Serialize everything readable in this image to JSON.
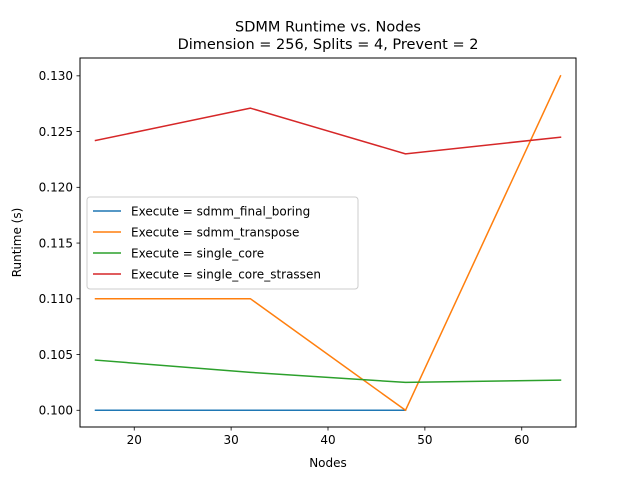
{
  "chart_data": {
    "type": "line",
    "title": "SDMM Runtime vs. Nodes",
    "subtitle": "Dimension = 256, Splits = 4, Prevent = 2",
    "xlabel": "Nodes",
    "ylabel": "Runtime (s)",
    "xlim": [
      14.4,
      65.6
    ],
    "ylim": [
      0.0985,
      0.1316
    ],
    "xticks": [
      20,
      30,
      40,
      50,
      60
    ],
    "yticks": [
      0.1,
      0.105,
      0.11,
      0.115,
      0.12,
      0.125,
      0.13
    ],
    "ytick_labels": [
      "0.100",
      "0.105",
      "0.110",
      "0.115",
      "0.120",
      "0.125",
      "0.130"
    ],
    "grid": false,
    "legend_position": "center-left",
    "series": [
      {
        "name": "Execute = sdmm_final_boring",
        "color": "#1f77b4",
        "x": [
          16,
          32,
          48
        ],
        "values": [
          0.1,
          0.1,
          0.1
        ]
      },
      {
        "name": "Execute = sdmm_transpose",
        "color": "#ff7f0e",
        "x": [
          16,
          32,
          48,
          64
        ],
        "values": [
          0.11,
          0.11,
          0.1,
          0.13
        ]
      },
      {
        "name": "Execute = single_core",
        "color": "#2ca02c",
        "x": [
          16,
          32,
          48,
          64
        ],
        "values": [
          0.1045,
          0.1034,
          0.1025,
          0.1027
        ]
      },
      {
        "name": "Execute = single_core_strassen",
        "color": "#d62728",
        "x": [
          16,
          32,
          48,
          64
        ],
        "values": [
          0.1242,
          0.1271,
          0.123,
          0.1245
        ]
      }
    ]
  }
}
